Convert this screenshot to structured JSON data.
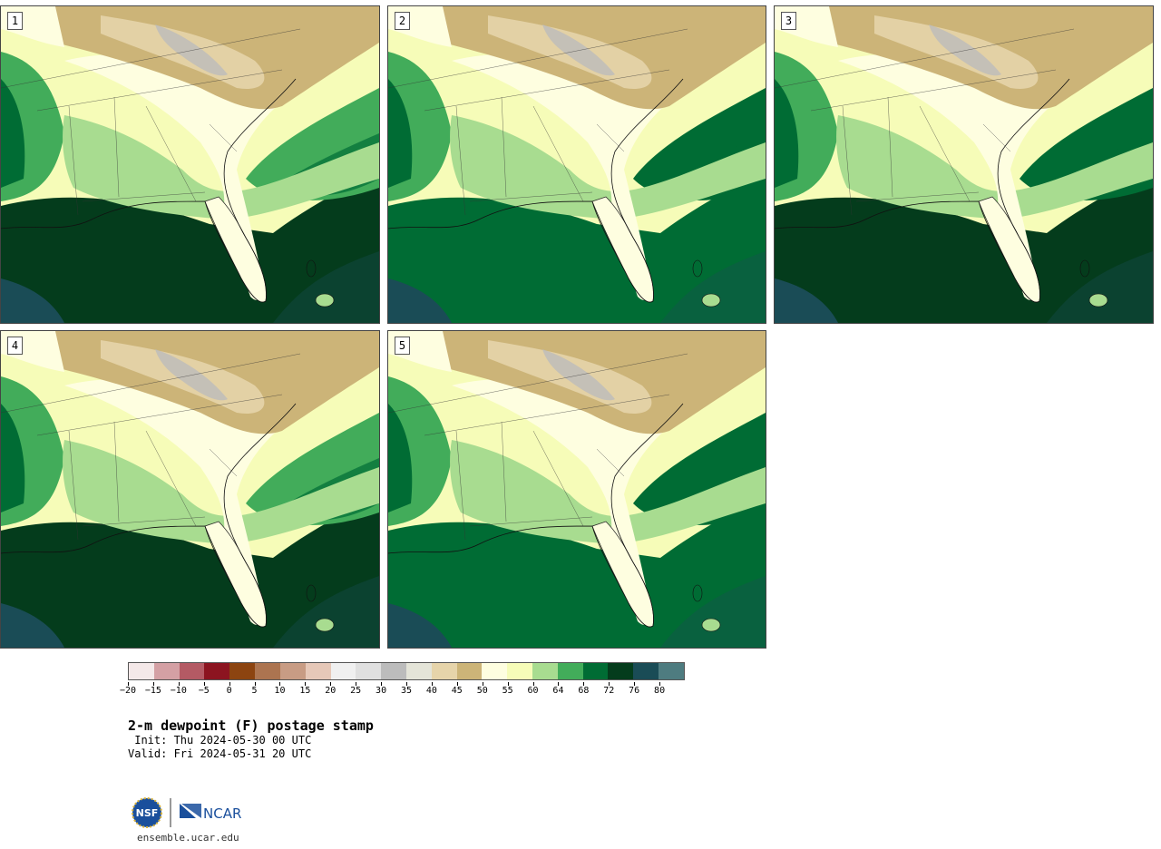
{
  "panels": [
    {
      "id": "1"
    },
    {
      "id": "2"
    },
    {
      "id": "3"
    },
    {
      "id": "4"
    },
    {
      "id": "5"
    }
  ],
  "colorbar": {
    "colors": [
      "#f4e8e8",
      "#d4a0a4",
      "#b45a64",
      "#8c1420",
      "#8c4410",
      "#ac7450",
      "#c89c84",
      "#e6c8b8",
      "#f0f0f0",
      "#e0e0e0",
      "#bcbcbc",
      "#e4e4d8",
      "#e6d4aa",
      "#ccb478",
      "#fefee0",
      "#f6fcb8",
      "#a8dc90",
      "#42ac5a",
      "#006c34",
      "#043c1c",
      "#1a4c56",
      "#4e7c80"
    ],
    "tick_labels": [
      "−20",
      "−15",
      "−10",
      "−5",
      "0",
      "5",
      "10",
      "15",
      "20",
      "25",
      "30",
      "35",
      "40",
      "45",
      "50",
      "55",
      "60",
      "64",
      "68",
      "72",
      "76",
      "80"
    ]
  },
  "title": "2-m dewpoint (F) postage stamp",
  "init": " Init: Thu 2024-05-30 00 UTC",
  "valid": "Valid: Fri 2024-05-31 20 UTC",
  "logos": {
    "nsf": "NSF",
    "ncar": "NCAR"
  },
  "url": "ensemble.ucar.edu"
}
